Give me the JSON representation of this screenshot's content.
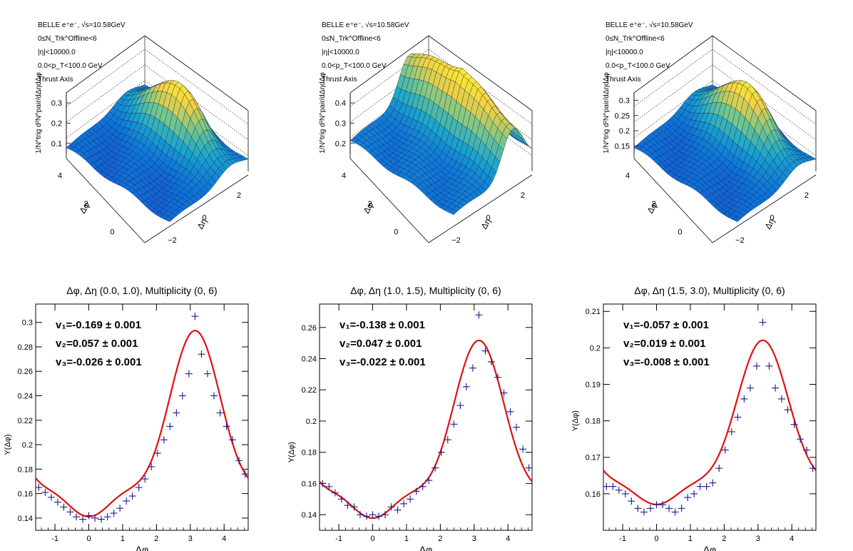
{
  "chart_data": [
    {
      "type": "surface",
      "info_lines": [
        "BELLE e⁺e⁻, √s=10.58GeV",
        "0≤N_Trk^Offline<6",
        "|η|<10000.0",
        "0.0<p_T<100.0 GeV",
        "Thrust Axis"
      ],
      "zlabel": "1/N^trig d²N^pair/dΔηdΔφ",
      "xlabel": "Δη",
      "ylabel": "Δφ",
      "eta_ticks": [
        "−2",
        "0",
        "2"
      ],
      "phi_ticks": [
        "0",
        "2",
        "4"
      ],
      "z_ticks": [
        "0.1",
        "0.2",
        "0.3"
      ],
      "peak_z": 0.33,
      "floor_z": 0.08
    },
    {
      "type": "surface",
      "info_lines": [
        "BELLE e⁺e⁻, √s=10.58GeV",
        "0≤N_Trk^Offline<6",
        "|η|<10000.0",
        "0.0<p_T<100.0 GeV",
        "Thrust Axis"
      ],
      "zlabel": "1/N^trig d²N^pair/dΔηdΔφ",
      "xlabel": "Δη",
      "ylabel": "Δφ",
      "eta_ticks": [
        "−2",
        "0",
        "2"
      ],
      "phi_ticks": [
        "0",
        "2",
        "4"
      ],
      "z_ticks": [
        "0.2",
        "0.3",
        "0.4"
      ],
      "peak_z": 0.47,
      "floor_z": 0.18
    },
    {
      "type": "surface",
      "info_lines": [
        "BELLE e⁺e⁻, √s=10.58GeV",
        "0≤N_Trk^Offline<6",
        "|η|<10000.0",
        "0.0<p_T<100.0 GeV",
        "Thrust Axis"
      ],
      "zlabel": "1/N^trig d²N^pair/dΔηdΔφ",
      "xlabel": "Δη",
      "ylabel": "Δφ",
      "eta_ticks": [
        "−2",
        "0",
        "2"
      ],
      "phi_ticks": [
        "0",
        "2",
        "4"
      ],
      "z_ticks": [
        "0.15",
        "0.2",
        "0.25",
        "0.3"
      ],
      "peak_z": 0.33,
      "floor_z": 0.14
    },
    {
      "type": "scatter",
      "title": "Δφ, Δη (0.0, 1.0), Multiplicity (0, 6)",
      "xlabel": "Δφ",
      "ylabel": "Y(Δφ)",
      "xlim": [
        -1.571,
        4.712
      ],
      "ylim": [
        0.13,
        0.315
      ],
      "xticks": [
        -1,
        0,
        1,
        2,
        3,
        4
      ],
      "yticks": [
        0.14,
        0.16,
        0.18,
        0.2,
        0.22,
        0.24,
        0.26,
        0.28,
        0.3
      ],
      "fit": {
        "a0": 0.195,
        "v1": -0.169,
        "v2": 0.057,
        "v3": -0.026
      },
      "fit_labels": [
        "v₁=-0.169 ± 0.001",
        "v₂=0.057 ± 0.001",
        "v₃=-0.026 ± 0.001"
      ],
      "points_x": [
        -1.48,
        -1.29,
        -1.11,
        -0.92,
        -0.74,
        -0.55,
        -0.37,
        -0.18,
        0.0,
        0.18,
        0.37,
        0.55,
        0.74,
        0.92,
        1.11,
        1.29,
        1.48,
        1.66,
        1.85,
        2.03,
        2.22,
        2.4,
        2.59,
        2.77,
        2.96,
        3.14,
        3.33,
        3.51,
        3.7,
        3.88,
        4.07,
        4.25,
        4.44,
        4.62
      ],
      "points_y": [
        0.165,
        0.161,
        0.157,
        0.153,
        0.149,
        0.145,
        0.141,
        0.139,
        0.142,
        0.14,
        0.139,
        0.141,
        0.144,
        0.148,
        0.154,
        0.158,
        0.165,
        0.172,
        0.182,
        0.193,
        0.204,
        0.215,
        0.226,
        0.24,
        0.258,
        0.305,
        0.274,
        0.258,
        0.24,
        0.226,
        0.215,
        0.204,
        0.187,
        0.176
      ]
    },
    {
      "type": "scatter",
      "title": "Δφ, Δη (1.0, 1.5), Multiplicity (0, 6)",
      "xlabel": "Δφ",
      "ylabel": "Y(Δφ)",
      "xlim": [
        -1.571,
        4.712
      ],
      "ylim": [
        0.13,
        0.275
      ],
      "xticks": [
        -1,
        0,
        1,
        2,
        3,
        4
      ],
      "yticks": [
        0.14,
        0.16,
        0.18,
        0.2,
        0.22,
        0.24,
        0.26
      ],
      "fit": {
        "a0": 0.178,
        "v1": -0.138,
        "v2": 0.047,
        "v3": -0.022
      },
      "fit_labels": [
        "v₁=-0.138 ± 0.001",
        "v₂=0.047 ± 0.001",
        "v₃=-0.022 ± 0.001"
      ],
      "points_x": [
        -1.48,
        -1.29,
        -1.11,
        -0.92,
        -0.74,
        -0.55,
        -0.37,
        -0.18,
        0.0,
        0.18,
        0.37,
        0.55,
        0.74,
        0.92,
        1.11,
        1.29,
        1.48,
        1.66,
        1.85,
        2.03,
        2.22,
        2.4,
        2.59,
        2.77,
        2.96,
        3.14,
        3.33,
        3.51,
        3.7,
        3.88,
        4.07,
        4.25,
        4.44,
        4.62
      ],
      "points_y": [
        0.16,
        0.158,
        0.154,
        0.15,
        0.146,
        0.145,
        0.14,
        0.139,
        0.14,
        0.139,
        0.14,
        0.145,
        0.143,
        0.147,
        0.15,
        0.155,
        0.158,
        0.162,
        0.17,
        0.18,
        0.188,
        0.198,
        0.21,
        0.222,
        0.234,
        0.268,
        0.245,
        0.238,
        0.228,
        0.218,
        0.206,
        0.196,
        0.182,
        0.17
      ]
    },
    {
      "type": "scatter",
      "title": "Δφ, Δη (1.5, 3.0), Multiplicity (0, 6)",
      "xlabel": "Δφ",
      "ylabel": "Y(Δφ)",
      "xlim": [
        -1.571,
        4.712
      ],
      "ylim": [
        0.15,
        0.212
      ],
      "xticks": [
        -1,
        0,
        1,
        2,
        3,
        4
      ],
      "yticks": [
        0.16,
        0.17,
        0.18,
        0.19,
        0.2,
        0.21
      ],
      "fit": {
        "a0": 0.173,
        "v1": -0.057,
        "v2": 0.019,
        "v3": -0.008
      },
      "fit_labels": [
        "v₁=-0.057 ± 0.001",
        "v₂=0.019 ± 0.001",
        "v₃=-0.008 ± 0.001"
      ],
      "points_x": [
        -1.48,
        -1.29,
        -1.11,
        -0.92,
        -0.74,
        -0.55,
        -0.37,
        -0.18,
        0.0,
        0.18,
        0.37,
        0.55,
        0.74,
        0.92,
        1.11,
        1.29,
        1.48,
        1.66,
        1.85,
        2.03,
        2.22,
        2.4,
        2.59,
        2.77,
        2.96,
        3.14,
        3.33,
        3.51,
        3.7,
        3.88,
        4.07,
        4.25,
        4.44,
        4.62
      ],
      "points_y": [
        0.162,
        0.162,
        0.161,
        0.16,
        0.158,
        0.156,
        0.155,
        0.156,
        0.157,
        0.157,
        0.156,
        0.155,
        0.156,
        0.159,
        0.16,
        0.162,
        0.162,
        0.163,
        0.167,
        0.172,
        0.177,
        0.181,
        0.186,
        0.189,
        0.195,
        0.207,
        0.195,
        0.189,
        0.186,
        0.183,
        0.179,
        0.175,
        0.172,
        0.167
      ]
    }
  ]
}
